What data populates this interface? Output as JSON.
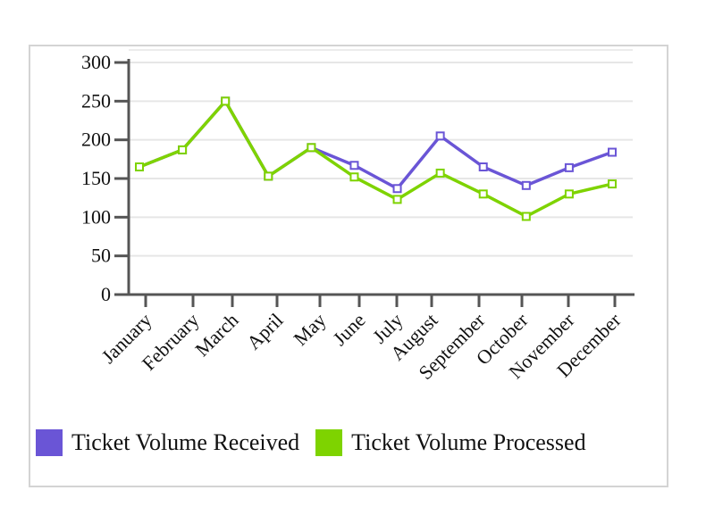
{
  "chart_data": {
    "type": "line",
    "categories": [
      "January",
      "February",
      "March",
      "April",
      "May",
      "June",
      "July",
      "August",
      "September",
      "October",
      "November",
      "December"
    ],
    "series": [
      {
        "name": "Ticket Volume Received",
        "color": "#6a55d6",
        "values": [
          165,
          187,
          250,
          153,
          190,
          167,
          137,
          205,
          165,
          141,
          164,
          184
        ]
      },
      {
        "name": "Ticket Volume Processed",
        "color": "#7ed300",
        "values": [
          165,
          187,
          250,
          153,
          190,
          152,
          123,
          157,
          130,
          101,
          130,
          143
        ]
      }
    ],
    "yticks": [
      0,
      50,
      100,
      150,
      200,
      250,
      300
    ],
    "ylim": [
      0,
      300
    ],
    "grid": true,
    "legend_position": "bottom"
  }
}
